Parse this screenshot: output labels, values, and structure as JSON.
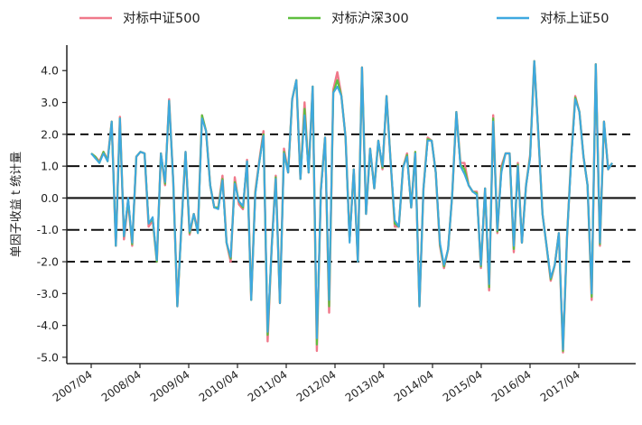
{
  "chart_data": {
    "type": "line",
    "ylabel": "单因子收益 t 统计量",
    "xlabel": "",
    "title": "",
    "ylim": [
      -5.2,
      4.8
    ],
    "yticks": [
      4.0,
      3.0,
      2.0,
      1.0,
      0.0,
      -1.0,
      -2.0,
      -3.0,
      -4.0,
      -5.0
    ],
    "ytick_labels": [
      "4.0",
      "3.0",
      "2.0",
      "1.0",
      "0.0",
      "-1.0",
      "-2.0",
      "-3.0",
      "-4.0",
      "-5.0"
    ],
    "xticks": [
      "2007/04",
      "2008/04",
      "2009/04",
      "2010/04",
      "2011/04",
      "2012/04",
      "2013/04",
      "2014/04",
      "2015/04",
      "2016/04",
      "2017/04"
    ],
    "legend_position": "top",
    "reference_lines": [
      {
        "y": 2.0,
        "style": "dashed"
      },
      {
        "y": -2.0,
        "style": "dashed"
      },
      {
        "y": 1.0,
        "style": "dashdot"
      },
      {
        "y": -1.0,
        "style": "dashdot"
      },
      {
        "y": 0.0,
        "style": "solid"
      }
    ],
    "colors": {
      "zz500": "#f0788a",
      "hs300": "#5fbf3f",
      "sz50": "#3ea8e0",
      "axis": "#222222"
    },
    "series": [
      {
        "name": "对标中证500",
        "color": "#f0788a",
        "values": [
          1.4,
          1.3,
          1.15,
          1.45,
          1.2,
          2.4,
          -1.5,
          2.55,
          -1.3,
          -0.1,
          -1.5,
          1.3,
          1.45,
          1.4,
          -0.9,
          -0.7,
          -2.0,
          1.4,
          0.4,
          3.1,
          0.5,
          -3.4,
          -0.8,
          1.45,
          -1.15,
          -0.5,
          -1.0,
          2.6,
          2.1,
          0.4,
          -0.3,
          -0.3,
          0.7,
          -1.4,
          -2.0,
          0.65,
          -0.2,
          -0.35,
          1.2,
          -3.2,
          0.2,
          1.2,
          2.1,
          -4.5,
          -1.5,
          0.7,
          -3.3,
          1.55,
          0.8,
          3.1,
          3.7,
          0.6,
          3.0,
          0.8,
          3.5,
          -4.8,
          0.3,
          1.9,
          -3.6,
          3.4,
          3.95,
          3.2,
          1.9,
          -1.3,
          0.9,
          -2.0,
          4.1,
          -0.5,
          1.55,
          0.3,
          1.8,
          0.9,
          3.2,
          1.1,
          -0.9,
          -0.9,
          0.95,
          1.4,
          -0.3,
          1.45,
          -3.4,
          0.3,
          1.9,
          1.8,
          0.8,
          -1.5,
          -2.2,
          -1.6,
          0.1,
          2.7,
          1.1,
          1.1,
          0.4,
          0.2,
          0.2,
          -2.2,
          0.3,
          -2.9,
          2.6,
          -1.1,
          1.0,
          1.4,
          1.4,
          -1.7,
          1.1,
          -1.4,
          0.4,
          1.35,
          4.3,
          2.0,
          -0.5,
          -1.5,
          -2.6,
          -2.1,
          -1.1,
          -4.85,
          -1.2,
          1.3,
          3.2,
          2.7,
          1.3,
          0.4,
          -3.2,
          4.2,
          -1.5,
          2.4,
          0.9,
          1.1
        ],
        "line_width": 2.4
      },
      {
        "name": "对标沪深300",
        "color": "#5fbf3f",
        "values": [
          1.4,
          1.3,
          1.1,
          1.45,
          1.15,
          2.4,
          -1.5,
          2.5,
          -1.2,
          -0.05,
          -1.45,
          1.3,
          1.45,
          1.4,
          -0.8,
          -0.65,
          -2.0,
          1.4,
          0.45,
          3.05,
          0.5,
          -3.4,
          -0.85,
          1.45,
          -1.1,
          -0.5,
          -1.1,
          2.6,
          2.1,
          0.4,
          -0.3,
          -0.3,
          0.6,
          -1.4,
          -1.9,
          0.5,
          -0.1,
          -0.3,
          1.15,
          -3.2,
          0.15,
          1.15,
          2.0,
          -4.3,
          -1.55,
          0.65,
          -3.3,
          1.45,
          0.8,
          3.1,
          3.7,
          0.6,
          2.8,
          0.8,
          3.5,
          -4.6,
          0.25,
          1.9,
          -3.4,
          3.3,
          3.7,
          3.2,
          1.9,
          -1.35,
          0.9,
          -2.0,
          4.1,
          -0.5,
          1.55,
          0.3,
          1.8,
          0.95,
          3.2,
          1.1,
          -0.8,
          -0.9,
          0.95,
          1.35,
          -0.3,
          1.45,
          -3.4,
          0.3,
          1.85,
          1.8,
          0.8,
          -1.45,
          -2.15,
          -1.6,
          0.1,
          2.7,
          1.05,
          0.9,
          0.4,
          0.2,
          0.15,
          -2.15,
          0.3,
          -2.8,
          2.5,
          -1.05,
          0.9,
          1.4,
          1.4,
          -1.6,
          1.05,
          -1.4,
          0.4,
          1.3,
          4.3,
          2.0,
          -0.5,
          -1.5,
          -2.55,
          -2.1,
          -1.1,
          -4.8,
          -1.2,
          1.25,
          3.15,
          2.7,
          1.3,
          0.4,
          -3.1,
          4.2,
          -1.45,
          2.4,
          0.9,
          1.1
        ],
        "line_width": 2.2
      },
      {
        "name": "对标上证50",
        "color": "#3ea8e0",
        "values": [
          1.4,
          1.25,
          1.1,
          1.4,
          1.15,
          2.4,
          -1.5,
          2.5,
          -1.2,
          0.0,
          -1.4,
          1.3,
          1.45,
          1.4,
          -0.8,
          -0.6,
          -1.95,
          1.4,
          0.5,
          3.05,
          0.5,
          -3.4,
          -0.85,
          1.45,
          -1.05,
          -0.5,
          -1.1,
          2.5,
          2.1,
          0.4,
          -0.3,
          -0.35,
          0.55,
          -1.4,
          -1.85,
          0.45,
          -0.1,
          -0.25,
          1.15,
          -3.2,
          0.1,
          1.15,
          1.95,
          -4.2,
          -1.55,
          0.6,
          -3.3,
          1.4,
          0.8,
          3.1,
          3.7,
          0.6,
          2.6,
          0.8,
          3.5,
          -4.4,
          0.2,
          1.9,
          -3.2,
          3.3,
          3.5,
          3.2,
          1.9,
          -1.4,
          0.9,
          -2.0,
          4.1,
          -0.5,
          1.55,
          0.3,
          1.8,
          1.0,
          3.2,
          1.1,
          -0.7,
          -0.9,
          0.95,
          1.3,
          -0.3,
          1.4,
          -3.4,
          0.3,
          1.8,
          1.8,
          0.8,
          -1.4,
          -2.1,
          -1.6,
          0.1,
          2.7,
          1.0,
          0.75,
          0.4,
          0.2,
          0.1,
          -2.1,
          0.3,
          -2.7,
          2.4,
          -1.0,
          0.8,
          1.4,
          1.4,
          -1.5,
          1.0,
          -1.4,
          0.4,
          1.25,
          4.3,
          2.0,
          -0.5,
          -1.5,
          -2.5,
          -2.1,
          -1.1,
          -4.75,
          -1.2,
          1.2,
          3.1,
          2.7,
          1.3,
          0.4,
          -3.0,
          4.2,
          -1.4,
          2.4,
          0.9,
          1.1
        ],
        "line_width": 2.0
      }
    ]
  }
}
